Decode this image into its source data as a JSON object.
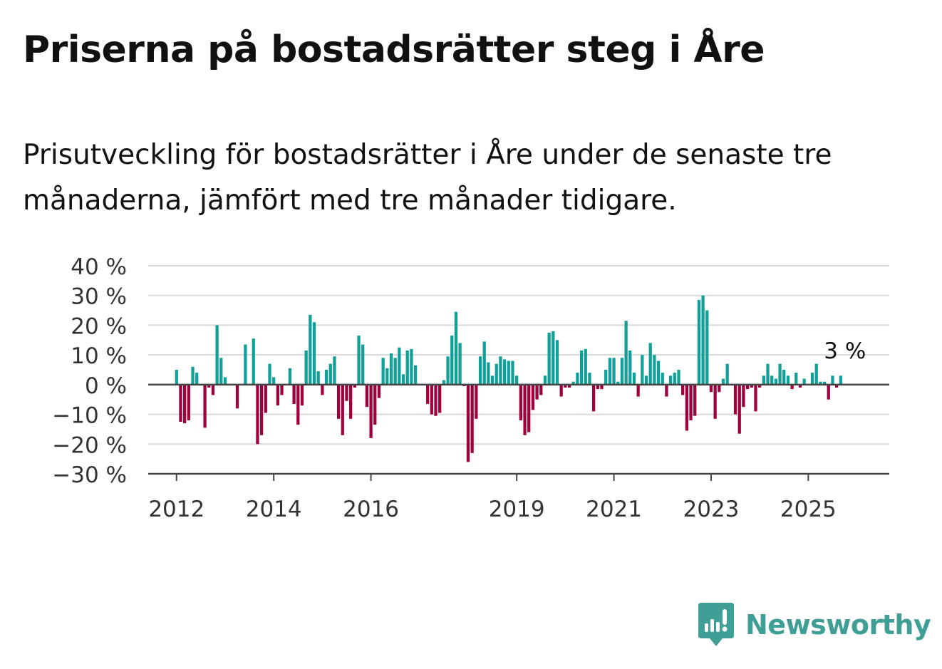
{
  "title": "Priserna på bostadsrätter steg i Åre",
  "subtitle": "Prisutveckling för bostadsrätter i Åre under de senaste tre månaderna, jämfört med tre månader tidigare.",
  "brand": {
    "name": "Newsworthy",
    "color": "#3f9f97"
  },
  "chart_data": {
    "type": "bar",
    "title": "Priserna på bostadsrätter steg i Åre",
    "subtitle": "Prisutveckling för bostadsrätter i Åre under de senaste tre månaderna, jämfört med tre månader tidigare.",
    "ylim": [
      -30,
      40
    ],
    "yticks": [
      -30,
      -20,
      -10,
      0,
      10,
      20,
      30,
      40
    ],
    "ytick_labels": [
      "−30 %",
      "−20 %",
      "−10 %",
      "0 %",
      "10 %",
      "20 %",
      "30 %",
      "40 %"
    ],
    "xlim": [
      "2011-06",
      "2026-09"
    ],
    "xticks": [
      "2012",
      "2014",
      "2016",
      "2019",
      "2021",
      "2023",
      "2025"
    ],
    "grid": "horizontal",
    "positive_color": "#0fa199",
    "negative_color": "#a0003c",
    "annotation": {
      "text": "3 %",
      "x": "2025-09"
    },
    "series": [
      {
        "start": "2012-01",
        "interval": "month",
        "values": [
          5,
          -12.5,
          -13,
          -12,
          6,
          4,
          null,
          -14.5,
          -1,
          -3.5,
          20,
          9,
          2.5,
          null,
          null,
          -8,
          null,
          13.5,
          null,
          15.5,
          -20,
          -17,
          -9.5,
          7,
          2.5,
          -7,
          -3.5,
          null,
          5.5,
          -6.5,
          -13.5,
          -7,
          11.5,
          23.5,
          21,
          4.5,
          -3.5,
          5,
          7,
          9.5,
          -11.5,
          -17,
          -5.5,
          -11.5,
          -1,
          16.5,
          13.5,
          -7.5,
          -18,
          -13.5,
          -4.5,
          9,
          5.5,
          10.5,
          9,
          12.5,
          3.5,
          11.5,
          12,
          6.5,
          null,
          null,
          -6.5,
          -10,
          -10.5,
          -9.5,
          1.5,
          9.5,
          16.5,
          24.5,
          14,
          -0.5,
          -26,
          -23,
          -11.5,
          9.5,
          14.5,
          7.5,
          3,
          7,
          9.5,
          8.5,
          8,
          8,
          3,
          -12,
          -17,
          -16,
          -8.5,
          -5,
          -3.5,
          3,
          17.5,
          18,
          15,
          -4,
          -1,
          -1,
          1,
          4,
          11.5,
          12,
          4,
          -9,
          -1.5,
          -1.5,
          5,
          9,
          9,
          1,
          9,
          21.5,
          11.5,
          4,
          -4,
          10,
          3,
          14,
          10,
          8,
          4,
          -4,
          3,
          4,
          5,
          -3.5,
          -15.5,
          -12,
          -10.5,
          28.5,
          30,
          25,
          -2.5,
          -11.5,
          -2.5,
          2,
          7,
          null,
          -10,
          -16.5,
          -7.5,
          -1.5,
          -1,
          -9,
          -1,
          3,
          7,
          3,
          2,
          7,
          5,
          3,
          -1.5,
          4,
          -1,
          2,
          null,
          4,
          7,
          1,
          1,
          -5,
          3,
          -1,
          3
        ]
      }
    ]
  }
}
